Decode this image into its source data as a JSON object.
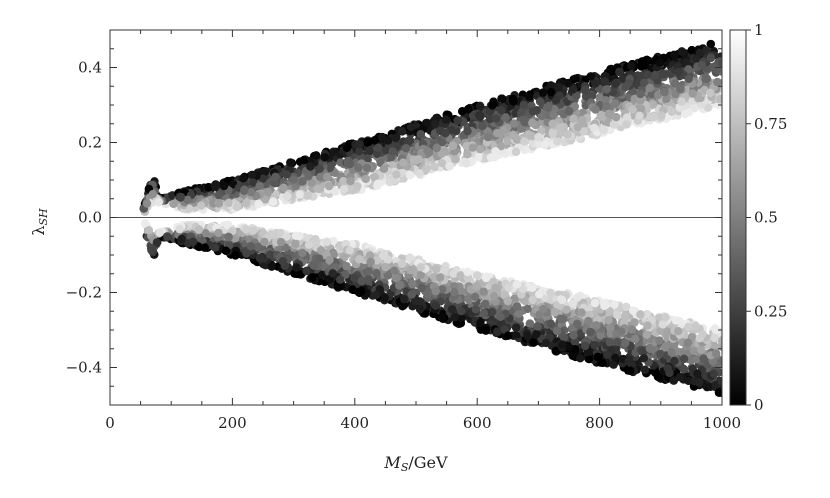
{
  "chart_data": {
    "type": "scatter",
    "title": "",
    "xlabel_main": "M",
    "xlabel_sub": "S",
    "xlabel_unit": "/GeV",
    "ylabel_main": "λ",
    "ylabel_sub": "SH",
    "xlim": [
      0,
      1000
    ],
    "ylim": [
      -0.5,
      0.5
    ],
    "x_ticks": [
      0,
      200,
      400,
      600,
      800,
      1000
    ],
    "x_tick_labels": [
      "0",
      "200",
      "400",
      "600",
      "800",
      "1000"
    ],
    "y_ticks": [
      -0.4,
      -0.2,
      0.0,
      0.2,
      0.4
    ],
    "y_tick_labels": [
      "−0.4",
      "−0.2",
      "0.0",
      "0.2",
      "0.4"
    ],
    "zero_line": true,
    "grid": false,
    "colorbar": {
      "range": [
        0,
        1
      ],
      "ticks": [
        0,
        0.25,
        0.5,
        0.75,
        1
      ],
      "tick_labels": [
        "0",
        "0.25",
        "0.5",
        "0.75",
        "1"
      ],
      "colormap": "grayscale black-to-white"
    },
    "band": {
      "description_x": [
        55,
        60,
        65,
        70,
        75,
        80,
        100,
        120,
        200,
        400,
        600,
        800,
        1000
      ],
      "upper_edge": [
        0.03,
        0.05,
        0.09,
        0.12,
        0.08,
        0.05,
        0.06,
        0.07,
        0.1,
        0.2,
        0.3,
        0.39,
        0.47
      ],
      "lower_edge": [
        0.01,
        0.02,
        0.03,
        0.04,
        0.05,
        0.04,
        0.03,
        0.02,
        0.02,
        0.07,
        0.15,
        0.22,
        0.3
      ],
      "symmetric_about_zero": true,
      "value_at_outer_edge": 0,
      "value_at_inner_edge": 1
    }
  }
}
